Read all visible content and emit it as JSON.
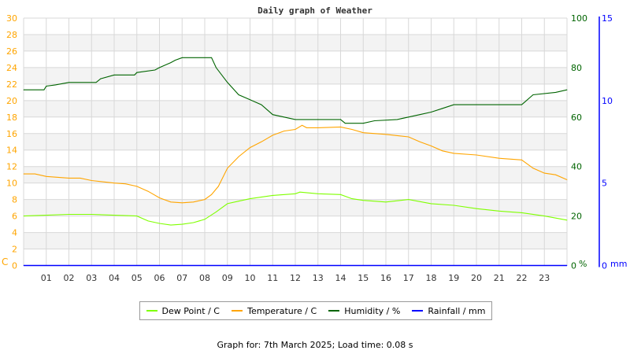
{
  "chart_data": {
    "type": "line",
    "title": "Daily graph of Weather",
    "x_tick_labels": [
      "01",
      "02",
      "03",
      "04",
      "05",
      "06",
      "07",
      "08",
      "09",
      "10",
      "11",
      "12",
      "13",
      "14",
      "15",
      "16",
      "17",
      "18",
      "19",
      "20",
      "21",
      "22",
      "23"
    ],
    "xlim": [
      0,
      24
    ],
    "axes": {
      "left": {
        "label": "C",
        "ylim": [
          0,
          30
        ],
        "ticks": [
          0,
          2,
          4,
          6,
          8,
          10,
          12,
          14,
          16,
          18,
          20,
          22,
          24,
          26,
          28,
          30
        ],
        "color": "#ffa500"
      },
      "right_humidity": {
        "label": "%",
        "ylim": [
          0,
          100
        ],
        "ticks": [
          0,
          20,
          40,
          60,
          80,
          100
        ],
        "color": "#006400"
      },
      "right_rainfall": {
        "label": "mm",
        "ylim": [
          0,
          15
        ],
        "ticks": [
          0,
          5,
          10,
          15
        ],
        "color": "#0000ff"
      }
    },
    "grid": true,
    "legend_position": "bottom",
    "series": [
      {
        "name": "Dew Point / C",
        "axis": "left",
        "color": "#7fff00",
        "x": [
          0,
          1,
          2,
          3,
          4,
          5,
          5.5,
          6,
          6.5,
          7,
          7.5,
          8,
          8.5,
          9,
          9.5,
          10,
          11,
          12,
          12.2,
          13,
          14,
          14.5,
          15,
          16,
          17,
          18,
          19,
          20,
          21,
          22,
          23,
          24
        ],
        "y": [
          6.0,
          6.1,
          6.2,
          6.2,
          6.1,
          6.0,
          5.4,
          5.1,
          4.9,
          5.0,
          5.2,
          5.6,
          6.5,
          7.5,
          7.8,
          8.1,
          8.5,
          8.7,
          8.9,
          8.7,
          8.6,
          8.1,
          7.9,
          7.7,
          8.0,
          7.5,
          7.3,
          6.9,
          6.6,
          6.4,
          6.0,
          5.5
        ]
      },
      {
        "name": "Temperature / C",
        "axis": "left",
        "color": "#ffa500",
        "x": [
          0,
          0.5,
          1,
          2,
          2.5,
          3,
          4,
          4.5,
          5,
          5.5,
          6,
          6.5,
          7,
          7.5,
          8,
          8.3,
          8.6,
          9,
          9.5,
          10,
          10.5,
          11,
          11.5,
          12,
          12.3,
          12.5,
          13,
          14,
          14.5,
          15,
          16,
          17,
          17.5,
          18,
          18.5,
          19,
          20,
          21,
          22,
          22.5,
          23,
          23.5,
          24
        ],
        "y": [
          11.1,
          11.1,
          10.8,
          10.6,
          10.6,
          10.3,
          10.0,
          9.9,
          9.6,
          9.0,
          8.2,
          7.7,
          7.6,
          7.7,
          8.0,
          8.6,
          9.6,
          11.8,
          13.2,
          14.3,
          15.0,
          15.8,
          16.3,
          16.5,
          17.0,
          16.7,
          16.7,
          16.8,
          16.5,
          16.1,
          15.9,
          15.6,
          15.0,
          14.5,
          13.9,
          13.6,
          13.4,
          13.0,
          12.8,
          11.8,
          11.2,
          11.0,
          10.4
        ]
      },
      {
        "name": "Humidity / %",
        "axis": "right_humidity",
        "color": "#006400",
        "x": [
          0,
          0.9,
          1,
          1.4,
          2,
          3.2,
          3.4,
          4,
          4.9,
          5,
          5.8,
          6,
          6.5,
          6.7,
          7,
          8.3,
          8.5,
          9,
          9.5,
          10,
          10.5,
          11,
          11.5,
          12,
          13,
          14,
          14.2,
          15,
          15.5,
          16.5,
          17,
          17.5,
          18,
          18.5,
          19,
          22,
          22.5,
          23.5,
          24
        ],
        "y": [
          71,
          71,
          72.5,
          73,
          74,
          74,
          75.5,
          77,
          77,
          78,
          79,
          80,
          82,
          83,
          84,
          84,
          80,
          74,
          69,
          67,
          65,
          61,
          60,
          59,
          59,
          59,
          57.5,
          57.5,
          58.5,
          59,
          60,
          61,
          62,
          63.5,
          65,
          65,
          69,
          70,
          71
        ]
      },
      {
        "name": "Rainfall / mm",
        "axis": "right_rainfall",
        "color": "#0000ff",
        "x": [
          0,
          24
        ],
        "y": [
          0,
          0
        ]
      }
    ]
  },
  "footer": "Graph for: 7th March 2025; Load time: 0.08 s"
}
